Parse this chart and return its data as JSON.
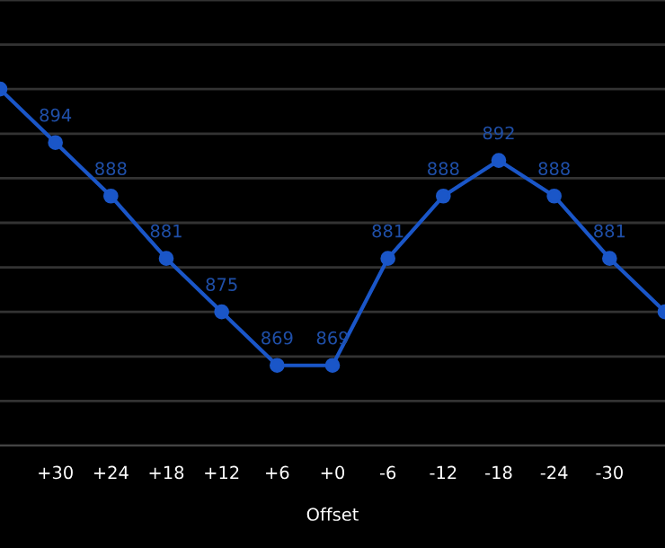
{
  "chart_data": {
    "type": "line",
    "xlabel": "Offset",
    "categories": [
      null,
      "+30",
      "+24",
      "+18",
      "+12",
      "+6",
      "+0",
      "-6",
      "-12",
      "-18",
      "-24",
      "-30",
      null
    ],
    "series": [
      {
        "color": "#1a56c8",
        "values": [
          900,
          894,
          888,
          881,
          875,
          869,
          869,
          881,
          888,
          892,
          888,
          881,
          875
        ],
        "value_labels": [
          null,
          "894",
          "888",
          "881",
          "875",
          "869",
          "869",
          "881",
          "888",
          "892",
          "888",
          "881",
          null
        ]
      }
    ],
    "ylim": [
      860,
      910
    ],
    "yticks": [
      {
        "value": 860,
        "label": null
      },
      {
        "value": 865,
        "label": null
      },
      {
        "value": 870,
        "label": null
      },
      {
        "value": 875,
        "label": null
      },
      {
        "value": 880,
        "label": null
      },
      {
        "value": 885,
        "label": null
      },
      {
        "value": 890,
        "label": null
      },
      {
        "value": 895,
        "label": null
      },
      {
        "value": 900,
        "label": null
      },
      {
        "value": 905,
        "label": null
      },
      {
        "value": 910,
        "label": null
      }
    ],
    "tick_labels": "x",
    "grid": "y",
    "marker": "circle",
    "line_style": "solid"
  }
}
